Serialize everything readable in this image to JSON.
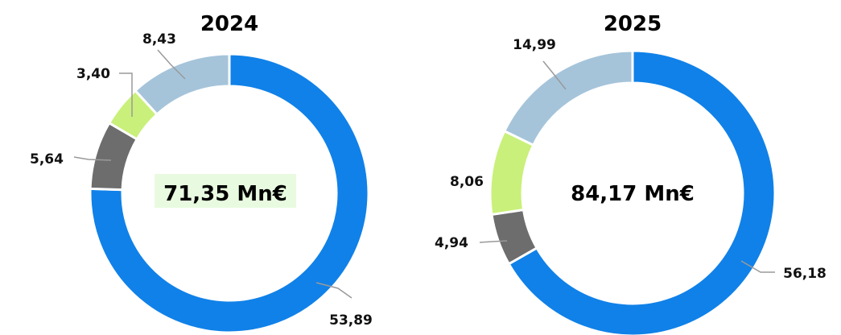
{
  "chart_data": [
    {
      "type": "pie",
      "title": "2024",
      "center_label": "71,35 Mn€",
      "center_highlight": "#e8fbe0",
      "values": [
        53.89,
        5.64,
        3.4,
        8.43
      ],
      "value_labels": [
        "53,89",
        "5,64",
        "3,40",
        "8,43"
      ],
      "colors": [
        "#1081e8",
        "#6d6d6d",
        "#c9f07a",
        "#a5c4da"
      ]
    },
    {
      "type": "pie",
      "title": "2025",
      "center_label": "84,17 Mn€",
      "values": [
        56.18,
        4.94,
        8.06,
        14.99
      ],
      "value_labels": [
        "56,18",
        "4,94",
        "8,06",
        "14,99"
      ],
      "colors": [
        "#1081e8",
        "#6d6d6d",
        "#c9f07a",
        "#a5c4da"
      ]
    }
  ]
}
